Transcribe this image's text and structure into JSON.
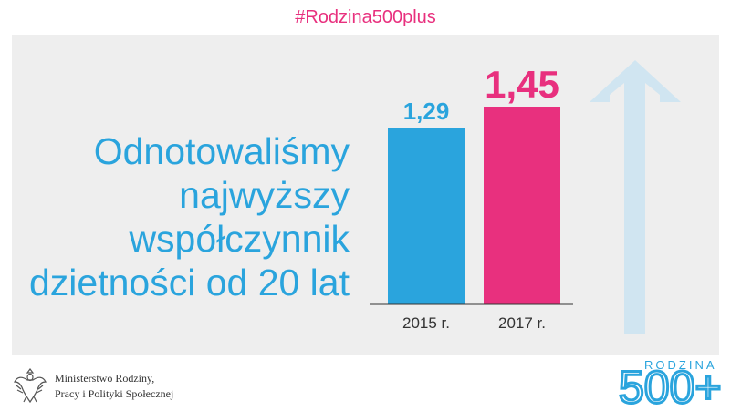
{
  "hashtag": "#Rodzina500plus",
  "headline": {
    "lines": [
      "Odnotowaliśmy",
      "najwyższy",
      "współczynnik",
      "dzietności od 20 lat"
    ]
  },
  "colors": {
    "blue": "#2aa4dd",
    "pink": "#e8307e",
    "arrow": "#d0e5f1",
    "panel": "#eeeeee"
  },
  "chart_data": {
    "type": "bar",
    "categories": [
      "2015 r.",
      "2017 r."
    ],
    "values": [
      1.29,
      1.45
    ],
    "value_labels": [
      "1,29",
      "1,45"
    ],
    "bar_colors": [
      "#2aa4dd",
      "#e8307e"
    ],
    "ylim": [
      0,
      1.45
    ],
    "title": "",
    "xlabel": "",
    "ylabel": "",
    "grid": false,
    "legend": "none"
  },
  "decoration": {
    "arrow_icon": "up-arrow-icon"
  },
  "footer": {
    "ministry_line1": "Ministerstwo Rodziny,",
    "ministry_line2": "Pracy i Polityki Społecznej",
    "logo_word": "RODZINA",
    "logo_number": "500+"
  }
}
